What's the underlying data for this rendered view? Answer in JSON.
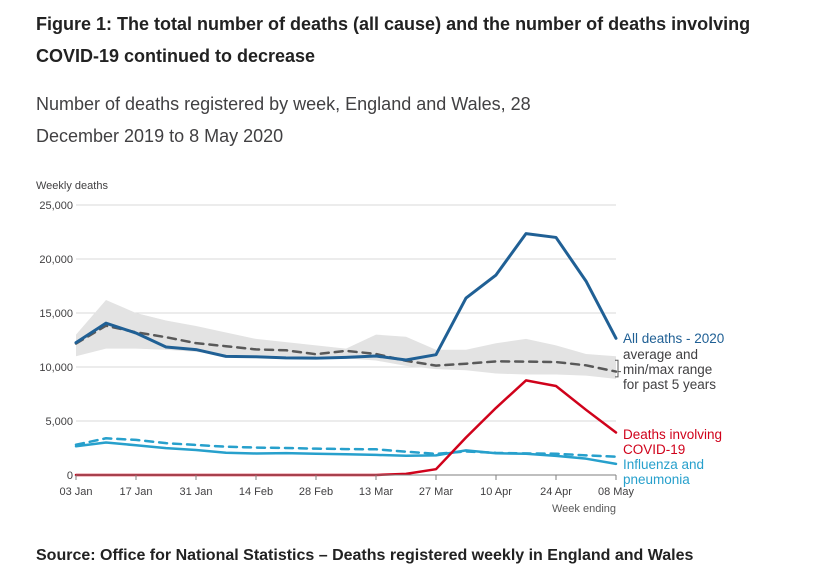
{
  "title": "Figure 1: The total number of deaths (all cause) and the number of deaths involving COVID-19 continued to decrease",
  "subtitle": "Number of deaths registered by week, England and Wales, 28 December 2019 to 8 May 2020",
  "source": "Source: Office for National Statistics – Deaths registered weekly in England and Wales",
  "chart_data": {
    "type": "line",
    "ylabel": "Weekly deaths",
    "xlabel": "Week ending",
    "ylim": [
      0,
      25000
    ],
    "yticks": [
      0,
      5000,
      10000,
      15000,
      20000,
      25000
    ],
    "ytick_labels": [
      "0",
      "5,000",
      "10,000",
      "15,000",
      "20,000",
      "25,000"
    ],
    "grid": true,
    "x": [
      "03 Jan",
      "10 Jan",
      "17 Jan",
      "24 Jan",
      "31 Jan",
      "07 Feb",
      "14 Feb",
      "21 Feb",
      "28 Feb",
      "06 Mar",
      "13 Mar",
      "20 Mar",
      "27 Mar",
      "03 Apr",
      "10 Apr",
      "17 Apr",
      "24 Apr",
      "01 May",
      "08 May"
    ],
    "xtick_labels": [
      "03 Jan",
      "17 Jan",
      "31 Jan",
      "14 Feb",
      "28 Feb",
      "13 Mar",
      "27 Mar",
      "10 Apr",
      "24 Apr",
      "08 May"
    ],
    "range_band": {
      "min": [
        11000,
        11700,
        11700,
        11600,
        11400,
        11100,
        11100,
        11000,
        10900,
        10800,
        10600,
        10100,
        9800,
        9700,
        9400,
        9300,
        9300,
        9200,
        8900
      ],
      "max": [
        13000,
        16200,
        15000,
        14300,
        13800,
        13200,
        12600,
        12300,
        12000,
        11700,
        13000,
        12800,
        11600,
        11600,
        12200,
        12600,
        12000,
        11200,
        11000
      ]
    },
    "series": [
      {
        "name": "All deaths - 2020",
        "color": "#206095",
        "dash": false,
        "values": [
          12254,
          14058,
          13144,
          11856,
          11612,
          10986,
          10944,
          10841,
          10816,
          10895,
          11019,
          10645,
          11141,
          16387,
          18516,
          22351,
          21997,
          17953,
          12657
        ]
      },
      {
        "name": "average and min/max range for past 5 years",
        "color": "#595959",
        "dash": true,
        "values": [
          12175,
          13822,
          13216,
          12760,
          12206,
          11925,
          11627,
          11548,
          11183,
          11498,
          11205,
          10573,
          10130,
          10305,
          10520,
          10497,
          10458,
          10156,
          9576
        ]
      },
      {
        "name": "Deaths involving COVID-19",
        "color": "#D0021B",
        "dash": false,
        "values": [
          0,
          0,
          0,
          0,
          0,
          0,
          0,
          0,
          0,
          0,
          5,
          103,
          539,
          3475,
          6213,
          8758,
          8237,
          6035,
          3930
        ]
      },
      {
        "name": "Influenza and pneumonia",
        "color": "#27A0CC",
        "dash": false,
        "values": [
          2661,
          3010,
          2752,
          2486,
          2317,
          2064,
          1992,
          2023,
          1967,
          1925,
          1860,
          1779,
          1818,
          2278,
          2015,
          1967,
          1769,
          1512,
          1027
        ]
      },
      {
        "name": "",
        "color": "#27A0CC",
        "dash": true,
        "values": [
          2800,
          3400,
          3250,
          2950,
          2780,
          2620,
          2540,
          2500,
          2440,
          2400,
          2380,
          2160,
          1960,
          2180,
          2050,
          2000,
          1970,
          1820,
          1690
        ]
      }
    ],
    "labels": {
      "all_deaths": "All deaths - 2020",
      "average": [
        "average and",
        "min/max range",
        "for past 5 years"
      ],
      "covid": [
        "Deaths involving",
        "COVID-19"
      ],
      "flu": [
        "Influenza and",
        "pneumonia"
      ]
    },
    "colors": {
      "all": "#206095",
      "covid": "#D0021B",
      "flu": "#27A0CC",
      "avg": "#595959",
      "band": "#E3E3E3",
      "grid": "#D9D9D9",
      "axis": "#7F7F7F"
    }
  }
}
